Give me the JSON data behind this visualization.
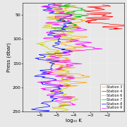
{
  "title": "",
  "xlabel": "log₁₀ K",
  "ylabel": "Press (dbar)",
  "xlim": [
    -7,
    -1
  ],
  "ylim": [
    250,
    25
  ],
  "xticks": [
    -6,
    -5,
    -4,
    -3,
    -2
  ],
  "yticks": [
    50,
    100,
    150,
    200,
    250
  ],
  "stations": [
    "Station 3",
    "Station 4",
    "Station 6",
    "Station 7",
    "Station 8",
    "Station 9"
  ],
  "colors": [
    "#FFA500",
    "#FF0000",
    "#CCCC00",
    "#00BB00",
    "#0000FF",
    "#FF00FF"
  ],
  "legend_fontsize": 3.5,
  "axis_fontsize": 5,
  "tick_fontsize": 4.5
}
